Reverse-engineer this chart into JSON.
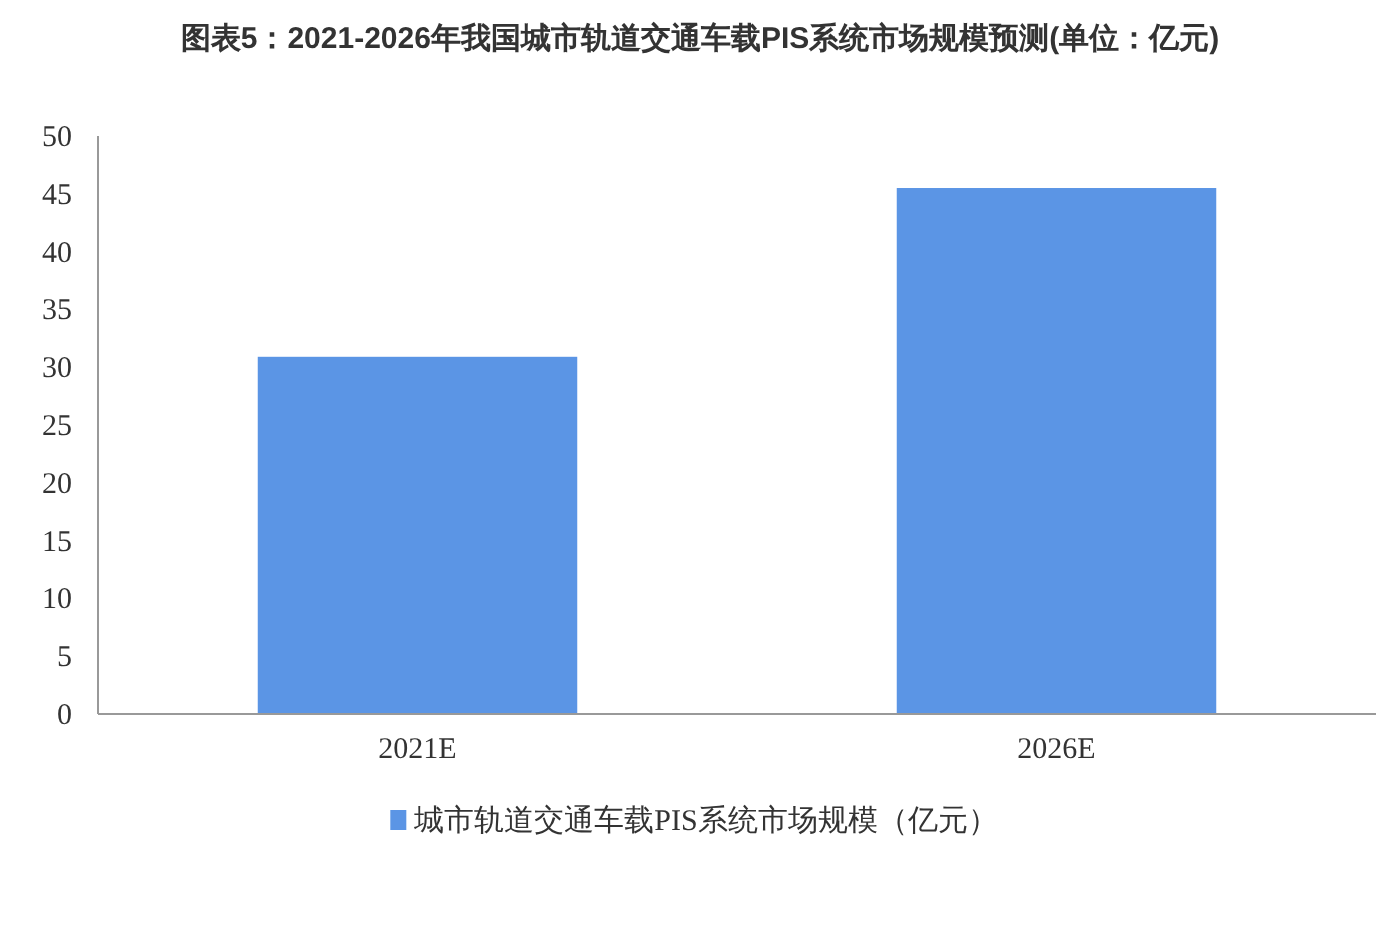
{
  "chart_data": {
    "type": "bar",
    "title": "图表5：2021-2026年我国城市轨道交通车载PIS系统市场规模预测(单位：亿元)",
    "categories": [
      "2021E",
      "2026E"
    ],
    "series": [
      {
        "name": "城市轨道交通车载PIS系统市场规模（亿元）",
        "color": "#5b95e5",
        "values": [
          30.9,
          45.5
        ]
      }
    ],
    "ylim": [
      0,
      50
    ],
    "yticks": [
      0,
      5,
      10,
      15,
      20,
      25,
      30,
      35,
      40,
      45,
      50
    ],
    "grid": false,
    "legend": "bottom"
  }
}
